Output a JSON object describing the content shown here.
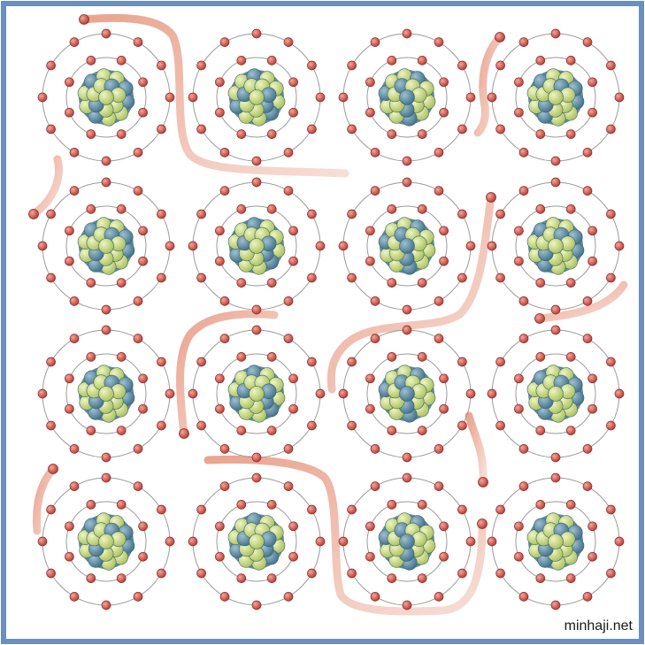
{
  "watermark": "minhaji.net",
  "lattice": {
    "rows": 4,
    "columns": 4,
    "inner_shell_electrons": 8,
    "outer_shell_electrons": 12
  },
  "colors": {
    "frame_border": "#6b8fbf",
    "orbit": "#9a9a9a",
    "electron": "#c9443a",
    "electron_highlight": "#f0a79e",
    "nucleus_green": "#c5d873",
    "nucleus_blue": "#5c8ea6",
    "free_electron_path": "#e9a08a"
  }
}
